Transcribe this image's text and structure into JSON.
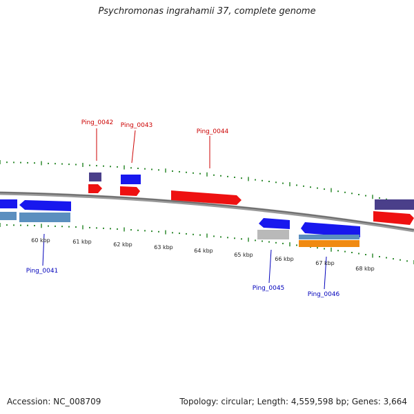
{
  "title": "Psychromonas ingrahamii 37, complete genome",
  "footer": {
    "accession": "Accession: NC_008709",
    "summary": "Topology: circular; Length: 4,559,598 bp; Genes: 3,664"
  },
  "colors": {
    "forward_gene": "#ee1111",
    "reverse_gene": "#1818ee",
    "purple_feature": "#4a3f8a",
    "steel_feature": "#5b8fbf",
    "gray_feature": "#b9b9b9",
    "orange_feature": "#f08a12",
    "tick": "#2f8a2f",
    "forward_label": "#cc0000",
    "reverse_label": "#0000bb",
    "backbone": "#777777"
  },
  "scale": {
    "ticks": [
      "60 kbp",
      "61 kbp",
      "62 kbp",
      "63 kbp",
      "64 kbp",
      "65 kbp",
      "66 kbp",
      "67 kbp",
      "68 kbp"
    ]
  },
  "genes": [
    {
      "label": "Ping_0041",
      "strand": "reverse"
    },
    {
      "label": "Ping_0042",
      "strand": "forward"
    },
    {
      "label": "Ping_0043",
      "strand": "forward"
    },
    {
      "label": "Ping_0044",
      "strand": "forward"
    },
    {
      "label": "Ping_0045",
      "strand": "reverse"
    },
    {
      "label": "Ping_0046",
      "strand": "reverse"
    }
  ]
}
